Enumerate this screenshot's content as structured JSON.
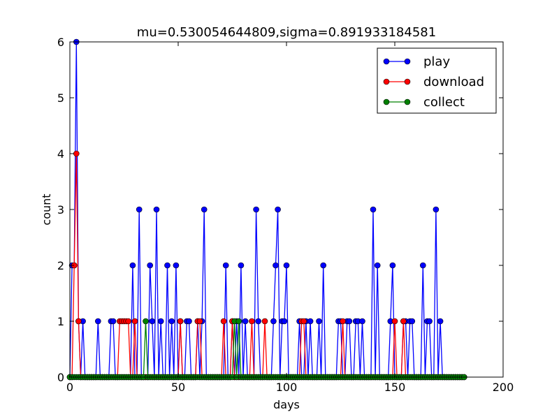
{
  "chart_data": {
    "type": "line",
    "title": "mu=0.530054644809,sigma=0.891933184581",
    "xlabel": "days",
    "ylabel": "count",
    "xlim": [
      0,
      200
    ],
    "ylim": [
      0,
      6
    ],
    "xticks": [
      "0",
      "50",
      "100",
      "150",
      "200"
    ],
    "yticks": [
      "0",
      "1",
      "2",
      "3",
      "4",
      "5",
      "6"
    ],
    "legend_position": "top-right",
    "grid": false,
    "x_max_day": 182,
    "series": [
      {
        "name": "play",
        "color": "#0000ff",
        "points": [
          [
            1,
            2
          ],
          [
            2,
            2
          ],
          [
            3,
            6
          ],
          [
            4,
            1
          ],
          [
            6,
            1
          ],
          [
            13,
            1
          ],
          [
            19,
            1
          ],
          [
            20,
            1
          ],
          [
            29,
            2
          ],
          [
            32,
            3
          ],
          [
            37,
            2
          ],
          [
            38,
            1
          ],
          [
            40,
            3
          ],
          [
            42,
            1
          ],
          [
            45,
            2
          ],
          [
            47,
            1
          ],
          [
            49,
            2
          ],
          [
            51,
            1
          ],
          [
            54,
            1
          ],
          [
            55,
            1
          ],
          [
            59,
            1
          ],
          [
            61,
            1
          ],
          [
            62,
            3
          ],
          [
            72,
            2
          ],
          [
            75,
            1
          ],
          [
            77,
            1
          ],
          [
            79,
            2
          ],
          [
            81,
            1
          ],
          [
            86,
            3
          ],
          [
            87,
            1
          ],
          [
            94,
            1
          ],
          [
            95,
            2
          ],
          [
            96,
            3
          ],
          [
            98,
            1
          ],
          [
            99,
            1
          ],
          [
            100,
            2
          ],
          [
            106,
            1
          ],
          [
            109,
            1
          ],
          [
            111,
            1
          ],
          [
            115,
            1
          ],
          [
            117,
            2
          ],
          [
            124,
            1
          ],
          [
            125,
            1
          ],
          [
            128,
            1
          ],
          [
            129,
            1
          ],
          [
            132,
            1
          ],
          [
            133,
            1
          ],
          [
            135,
            1
          ],
          [
            140,
            3
          ],
          [
            142,
            2
          ],
          [
            148,
            1
          ],
          [
            149,
            2
          ],
          [
            154,
            1
          ],
          [
            155,
            1
          ],
          [
            157,
            1
          ],
          [
            158,
            1
          ],
          [
            163,
            2
          ],
          [
            165,
            1
          ],
          [
            166,
            1
          ],
          [
            169,
            3
          ],
          [
            171,
            1
          ]
        ]
      },
      {
        "name": "download",
        "color": "#ff0000",
        "points": [
          [
            2,
            2
          ],
          [
            3,
            4
          ],
          [
            4,
            1
          ],
          [
            23,
            1
          ],
          [
            24,
            1
          ],
          [
            25,
            1
          ],
          [
            26,
            1
          ],
          [
            27,
            1
          ],
          [
            30,
            1
          ],
          [
            51,
            1
          ],
          [
            59,
            1
          ],
          [
            60,
            1
          ],
          [
            71,
            1
          ],
          [
            75,
            1
          ],
          [
            84,
            1
          ],
          [
            90,
            1
          ],
          [
            107,
            1
          ],
          [
            108,
            1
          ],
          [
            126,
            1
          ],
          [
            150,
            1
          ],
          [
            154,
            1
          ]
        ]
      },
      {
        "name": "collect",
        "color": "#008000",
        "points": [
          [
            35,
            1
          ],
          [
            76,
            1
          ],
          [
            78,
            1
          ]
        ]
      }
    ]
  }
}
